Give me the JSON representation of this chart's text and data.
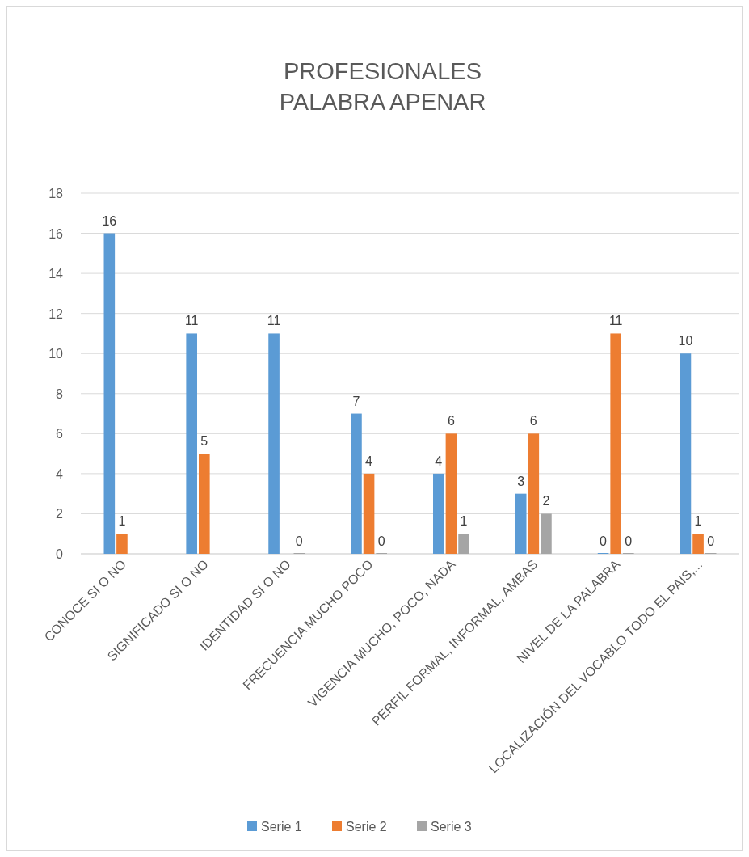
{
  "chart_data": {
    "type": "bar",
    "title": "PROFESIONALES\nPALABRA APENAR",
    "categories": [
      "CONOCE SI O NO",
      "SIGNIFICADO SI O NO",
      "IDENTIDAD SI O NO",
      "FRECUENCIA MUCHO POCO",
      "VIGENCIA MUCHO, POCO, NADA",
      "PERFIL FORMAL, INFORMAL, AMBAS",
      "NIVEL DE LA PALABRA",
      "LOCALIZACIÓN DEL VOCABLO TODO EL PAIS,..."
    ],
    "series": [
      {
        "name": "Serie 1",
        "color": "#5b9bd5",
        "values": [
          16,
          11,
          11,
          7,
          4,
          3,
          0,
          10
        ]
      },
      {
        "name": "Serie 2",
        "color": "#ed7d31",
        "values": [
          1,
          5,
          null,
          4,
          6,
          6,
          11,
          1
        ]
      },
      {
        "name": "Serie 3",
        "color": "#a5a5a5",
        "values": [
          null,
          null,
          0,
          0,
          1,
          2,
          0,
          0
        ]
      }
    ],
    "ylim": [
      0,
      18
    ],
    "yticks": [
      0,
      2,
      4,
      6,
      8,
      10,
      12,
      14,
      16,
      18
    ],
    "grid": "y",
    "legend": "bottom",
    "data_labels": true
  }
}
